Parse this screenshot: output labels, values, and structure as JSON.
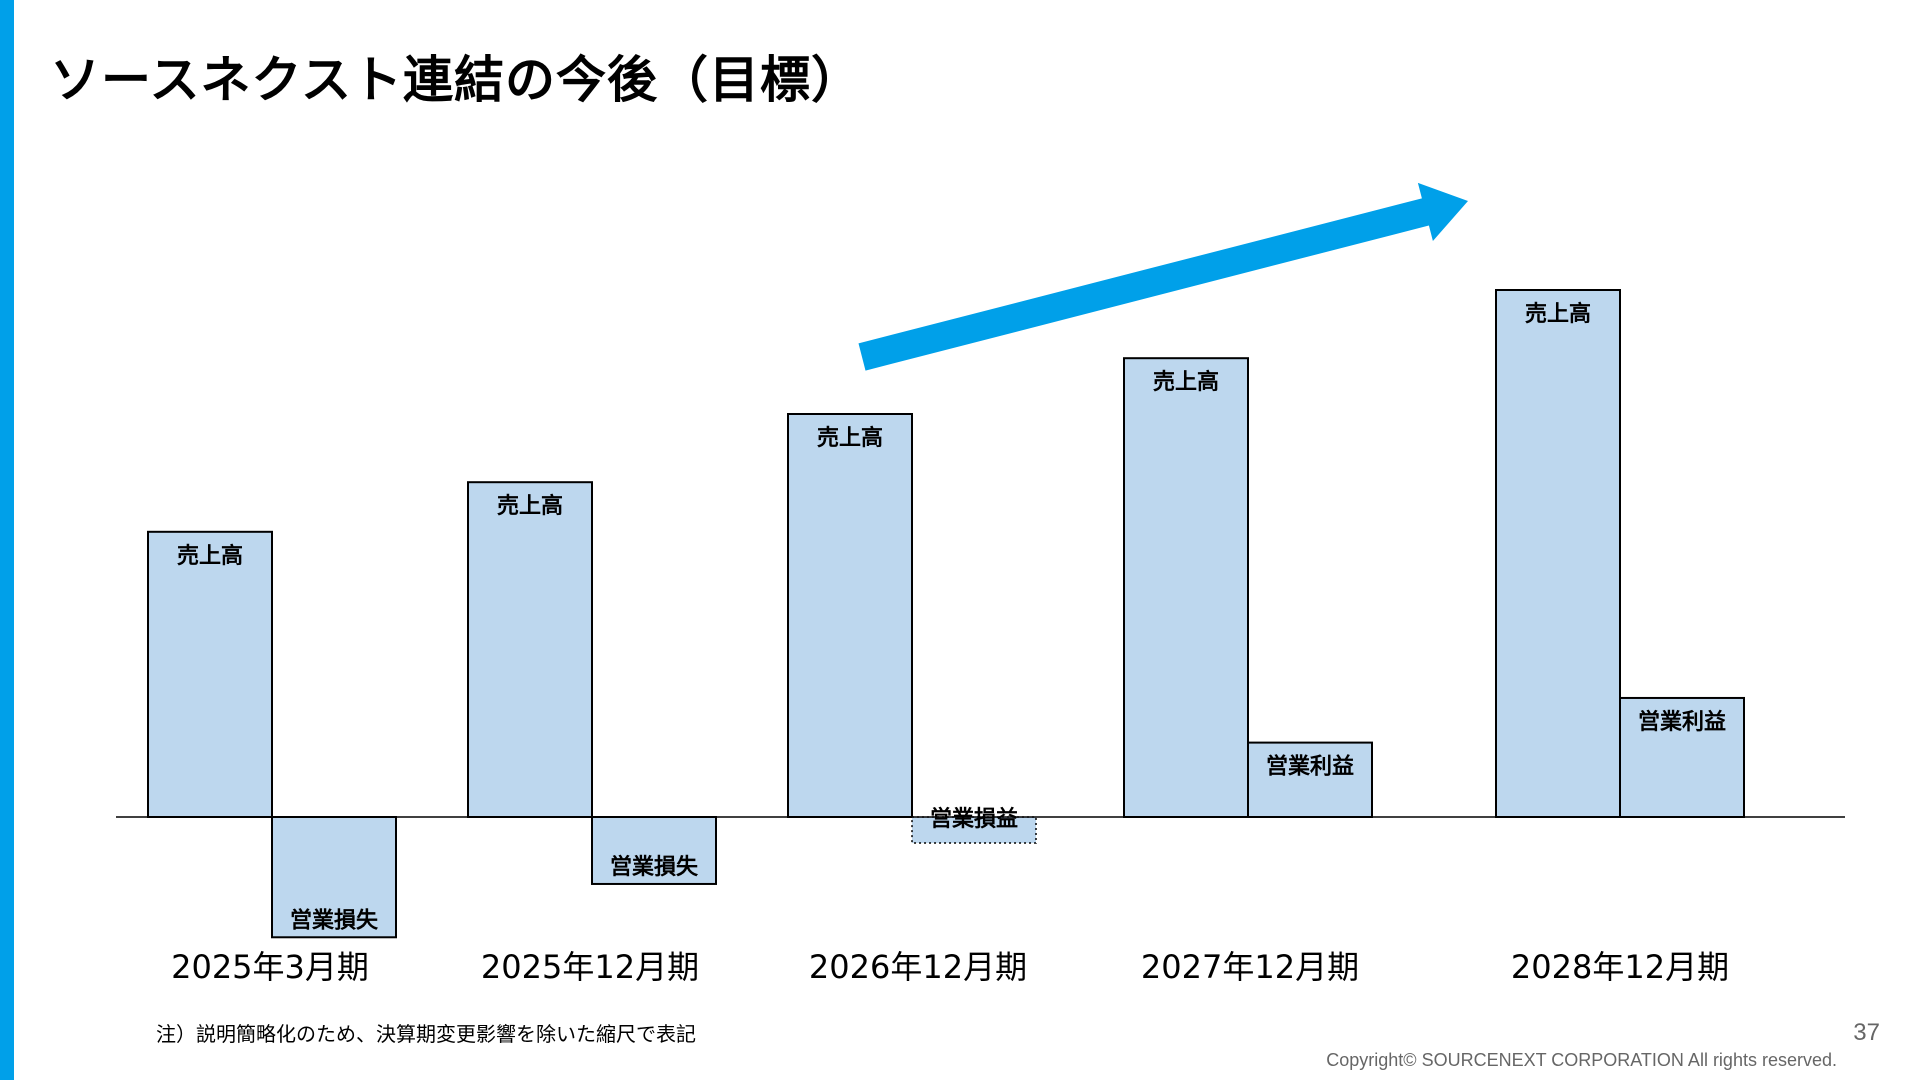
{
  "title": "ソースネクスト連結の今後（目標）",
  "note": "注）説明簡略化のため、決算期変更影響を除いた縮尺で表記",
  "page_number": "37",
  "copyright": "Copyright© SOURCENEXT CORPORATION All rights reserved.",
  "colors": {
    "accent": "#00a0e9",
    "bar_fill": "#bdd7ee",
    "bar_stroke": "#000000"
  },
  "chart_data": {
    "type": "bar",
    "title": "",
    "xlabel": "",
    "ylabel": "",
    "categories": [
      "2025年3月期",
      "2025年12月期",
      "2026年12月期",
      "2027年12月期",
      "2028年12月期"
    ],
    "series": [
      {
        "label": "売上高",
        "values": [
          230,
          270,
          325,
          370,
          425
        ]
      },
      {
        "label_per_bar": [
          "営業損失",
          "営業損失",
          "営業損益",
          "営業利益",
          "営業利益"
        ],
        "values": [
          -97,
          -54,
          -21,
          60,
          96
        ],
        "styles": [
          "solid",
          "solid",
          "dotted",
          "solid",
          "solid"
        ]
      }
    ],
    "ylim": [
      -100,
      430
    ],
    "grid": false,
    "trend_arrow": true
  }
}
